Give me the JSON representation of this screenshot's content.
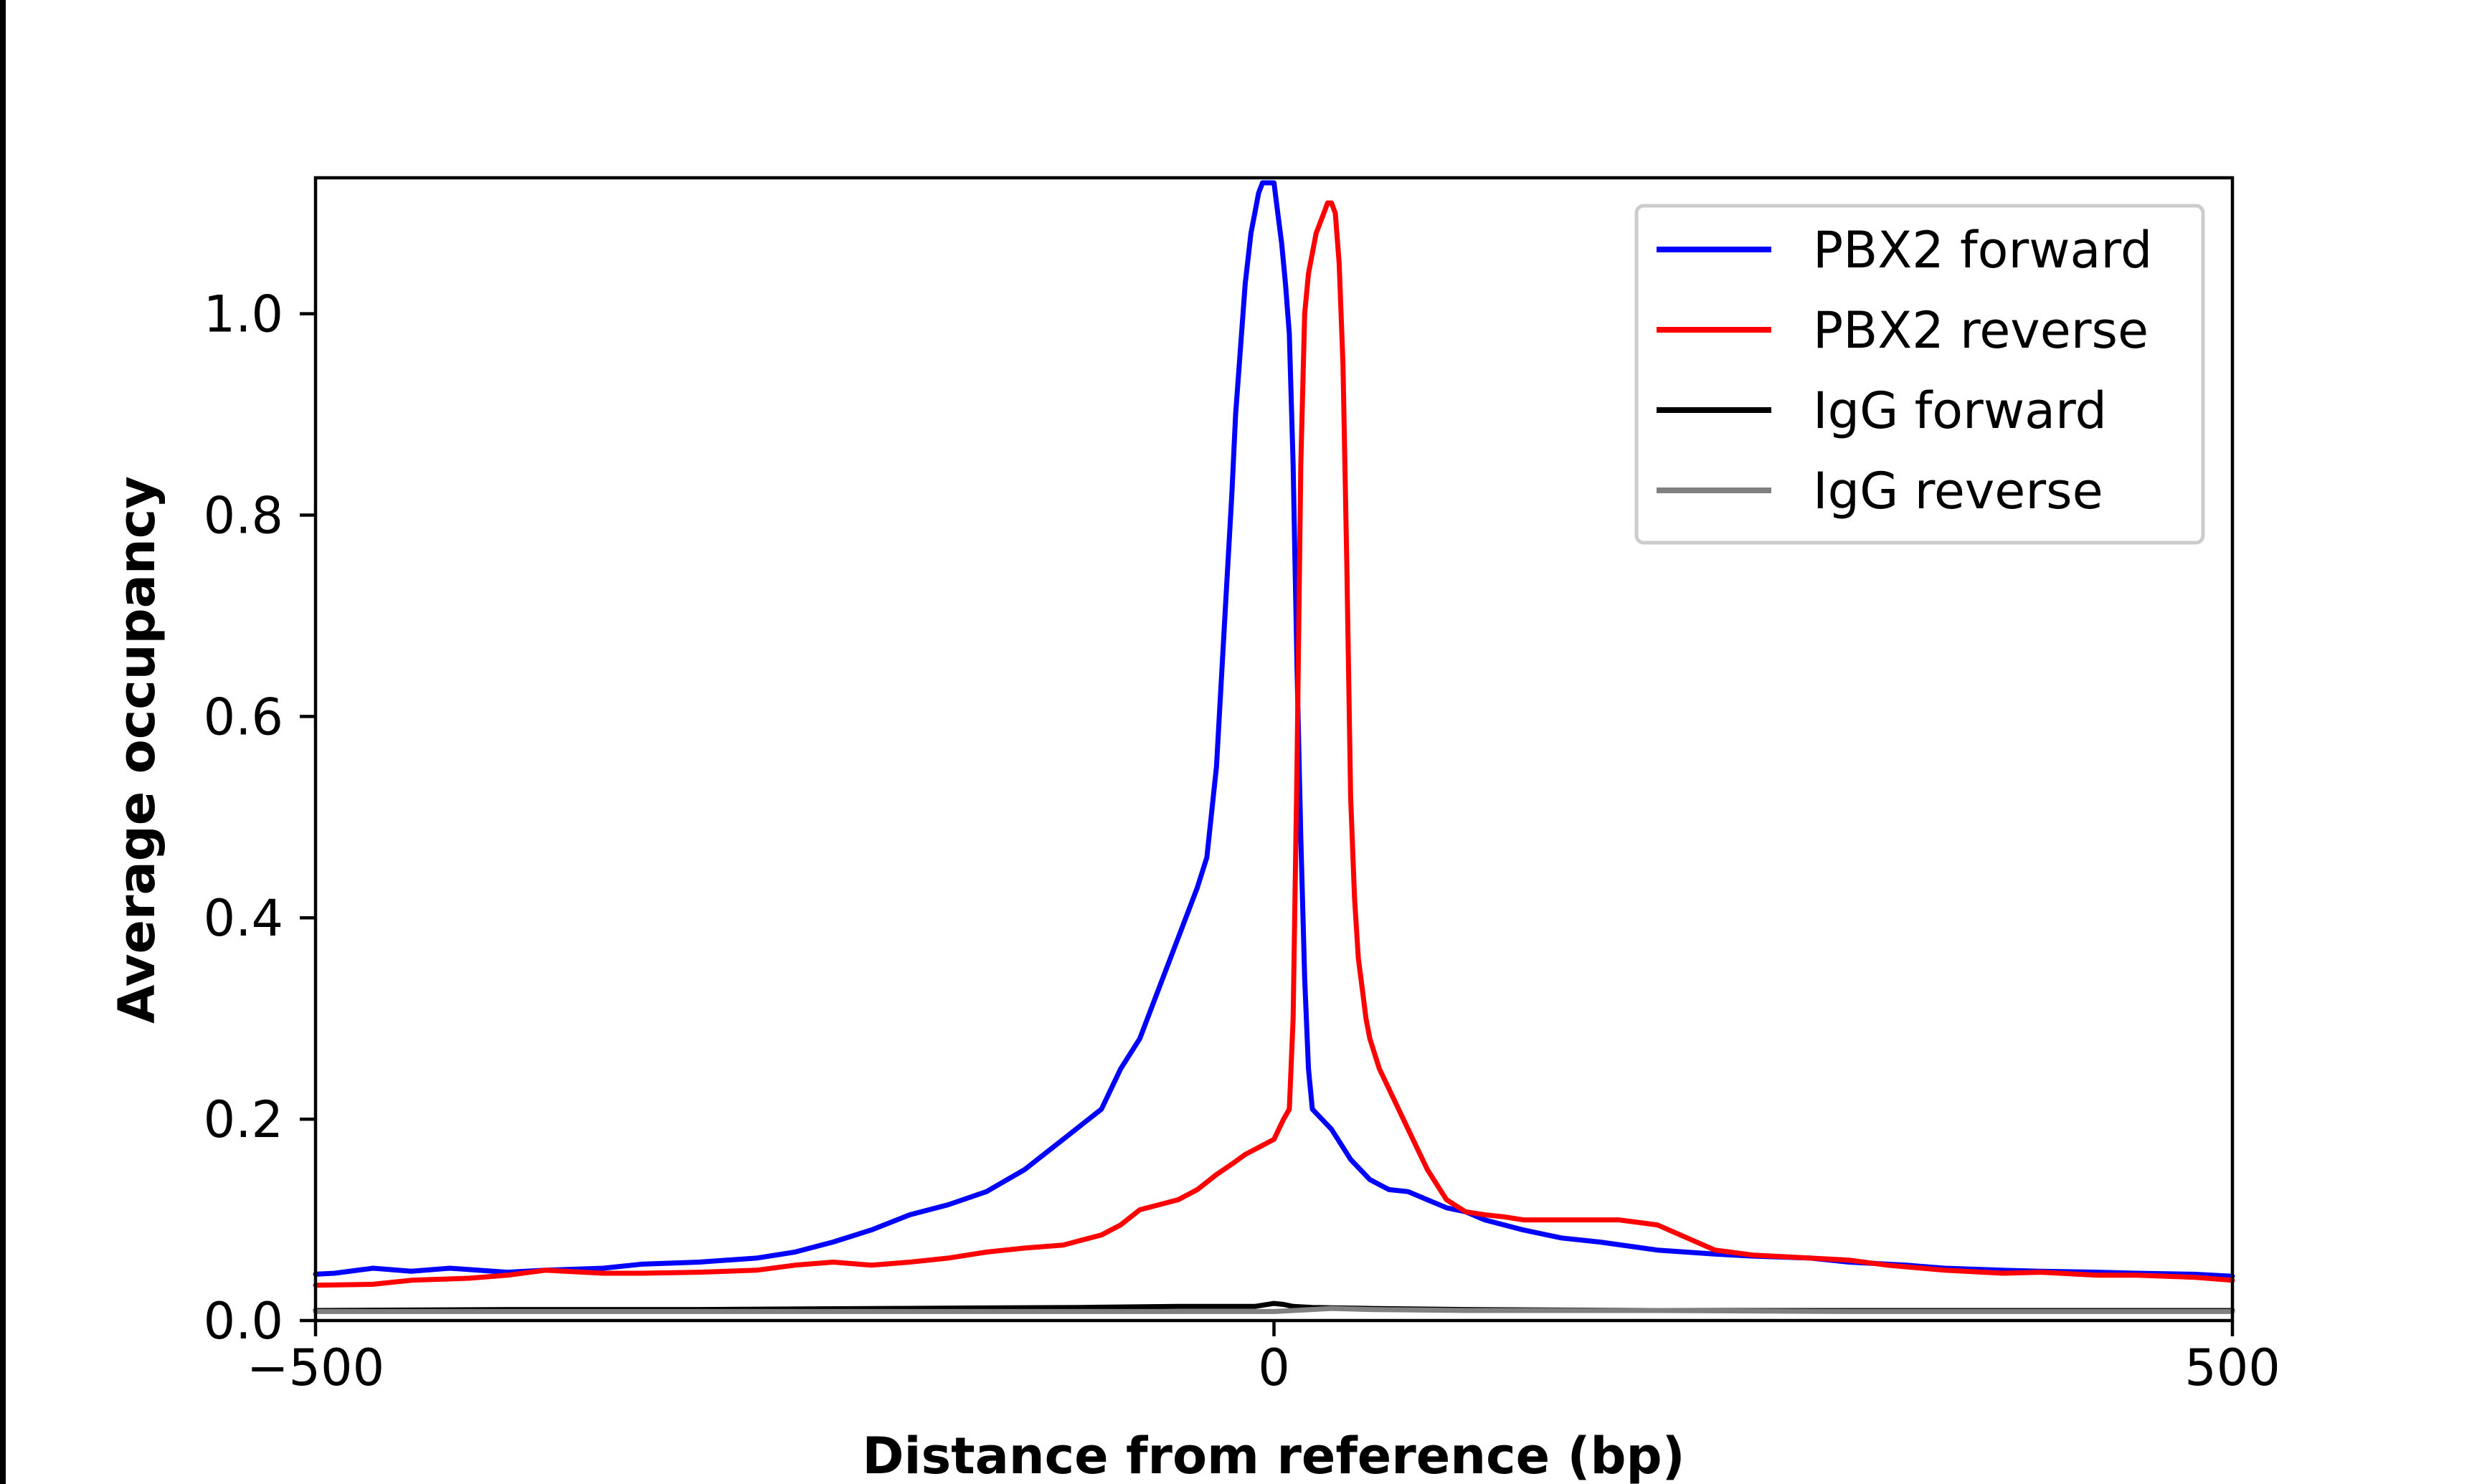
{
  "chart_data": {
    "type": "line",
    "title": "",
    "xlabel": "Distance from reference (bp)",
    "ylabel": "Average occupancy",
    "xlim": [
      -500,
      500
    ],
    "ylim": [
      0,
      1.135
    ],
    "xticks": [
      -500,
      0,
      500
    ],
    "xtick_labels": [
      "−500",
      "0",
      "500"
    ],
    "yticks": [
      0.0,
      0.2,
      0.4,
      0.6,
      0.8,
      1.0
    ],
    "ytick_labels": [
      "0.0",
      "0.2",
      "0.4",
      "0.6",
      "0.8",
      "1.0"
    ],
    "grid": false,
    "legend_position": "top-right",
    "series": [
      {
        "name": "PBX2 forward",
        "color": "#0000ff",
        "x": [
          -500,
          -490,
          -470,
          -450,
          -430,
          -400,
          -380,
          -350,
          -330,
          -300,
          -270,
          -250,
          -230,
          -210,
          -190,
          -170,
          -150,
          -130,
          -110,
          -90,
          -80,
          -70,
          -60,
          -50,
          -40,
          -35,
          -30,
          -25,
          -22,
          -20,
          -15,
          -12,
          -10,
          -8,
          -6,
          -4,
          -3,
          -2,
          0,
          2,
          4,
          6,
          8,
          10,
          12,
          14,
          16,
          18,
          20,
          25,
          30,
          35,
          40,
          45,
          50,
          55,
          60,
          70,
          80,
          90,
          100,
          110,
          120,
          130,
          150,
          170,
          200,
          230,
          250,
          280,
          300,
          330,
          350,
          380,
          400,
          430,
          450,
          480,
          500
        ],
        "y": [
          0.046,
          0.047,
          0.052,
          0.049,
          0.052,
          0.048,
          0.05,
          0.052,
          0.056,
          0.058,
          0.062,
          0.068,
          0.078,
          0.09,
          0.105,
          0.115,
          0.128,
          0.15,
          0.18,
          0.21,
          0.25,
          0.28,
          0.33,
          0.38,
          0.43,
          0.46,
          0.55,
          0.72,
          0.82,
          0.9,
          1.03,
          1.08,
          1.1,
          1.12,
          1.13,
          1.13,
          1.13,
          1.13,
          1.13,
          1.1,
          1.07,
          1.03,
          0.98,
          0.85,
          0.65,
          0.48,
          0.34,
          0.25,
          0.21,
          0.2,
          0.19,
          0.175,
          0.16,
          0.15,
          0.14,
          0.135,
          0.13,
          0.128,
          0.12,
          0.112,
          0.108,
          0.1,
          0.095,
          0.09,
          0.082,
          0.078,
          0.07,
          0.066,
          0.064,
          0.062,
          0.058,
          0.055,
          0.052,
          0.05,
          0.049,
          0.048,
          0.047,
          0.046,
          0.044
        ]
      },
      {
        "name": "PBX2 reverse",
        "color": "#ff0000",
        "x": [
          -500,
          -470,
          -450,
          -420,
          -400,
          -380,
          -350,
          -330,
          -300,
          -270,
          -250,
          -230,
          -210,
          -190,
          -170,
          -150,
          -130,
          -110,
          -100,
          -90,
          -80,
          -70,
          -60,
          -50,
          -40,
          -30,
          -20,
          -15,
          -10,
          0,
          5,
          8,
          10,
          12,
          14,
          16,
          18,
          20,
          22,
          24,
          26,
          28,
          30,
          32,
          34,
          36,
          38,
          40,
          42,
          44,
          46,
          48,
          50,
          55,
          60,
          70,
          80,
          90,
          100,
          110,
          120,
          130,
          150,
          170,
          180,
          200,
          230,
          250,
          280,
          300,
          320,
          350,
          380,
          400,
          430,
          450,
          480,
          500
        ],
        "y": [
          0.035,
          0.036,
          0.04,
          0.042,
          0.045,
          0.05,
          0.047,
          0.047,
          0.048,
          0.05,
          0.055,
          0.058,
          0.055,
          0.058,
          0.062,
          0.068,
          0.072,
          0.075,
          0.08,
          0.085,
          0.095,
          0.11,
          0.115,
          0.12,
          0.13,
          0.145,
          0.158,
          0.165,
          0.17,
          0.18,
          0.2,
          0.21,
          0.3,
          0.55,
          0.85,
          1.0,
          1.04,
          1.06,
          1.08,
          1.09,
          1.1,
          1.11,
          1.11,
          1.1,
          1.05,
          0.95,
          0.75,
          0.52,
          0.42,
          0.36,
          0.33,
          0.3,
          0.28,
          0.25,
          0.23,
          0.19,
          0.15,
          0.12,
          0.108,
          0.105,
          0.103,
          0.1,
          0.1,
          0.1,
          0.1,
          0.095,
          0.07,
          0.065,
          0.062,
          0.06,
          0.055,
          0.05,
          0.047,
          0.048,
          0.045,
          0.045,
          0.043,
          0.04
        ]
      },
      {
        "name": "IgG forward",
        "color": "#000000",
        "x": [
          -500,
          -400,
          -300,
          -200,
          -100,
          -50,
          -10,
          0,
          5,
          10,
          20,
          50,
          100,
          200,
          300,
          400,
          500
        ],
        "y": [
          0.01,
          0.011,
          0.011,
          0.012,
          0.013,
          0.014,
          0.014,
          0.017,
          0.016,
          0.014,
          0.013,
          0.012,
          0.011,
          0.01,
          0.01,
          0.01,
          0.01
        ]
      },
      {
        "name": "IgG reverse",
        "color": "#808080",
        "x": [
          -500,
          -400,
          -300,
          -200,
          -100,
          -50,
          0,
          10,
          20,
          30,
          50,
          100,
          200,
          300,
          400,
          500
        ],
        "y": [
          0.009,
          0.009,
          0.009,
          0.009,
          0.009,
          0.009,
          0.009,
          0.01,
          0.011,
          0.012,
          0.011,
          0.01,
          0.01,
          0.009,
          0.009,
          0.009
        ]
      }
    ]
  }
}
